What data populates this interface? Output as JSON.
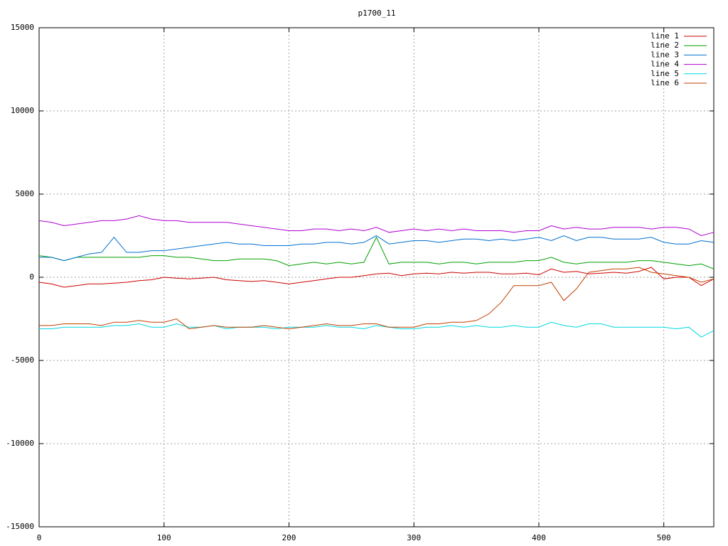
{
  "chart_data": {
    "type": "line",
    "title": "p1700_11",
    "x": [
      0,
      10,
      20,
      30,
      40,
      50,
      60,
      70,
      80,
      90,
      100,
      110,
      120,
      130,
      140,
      150,
      160,
      170,
      180,
      190,
      200,
      210,
      220,
      230,
      240,
      250,
      260,
      270,
      280,
      290,
      300,
      310,
      320,
      330,
      340,
      350,
      360,
      370,
      380,
      390,
      400,
      410,
      420,
      430,
      440,
      450,
      460,
      470,
      480,
      490,
      500,
      510,
      520,
      530,
      540
    ],
    "series": [
      {
        "name": "line 1",
        "color": "#cc0000",
        "values": [
          -300,
          -400,
          -600,
          -500,
          -400,
          -400,
          -350,
          -300,
          -200,
          -150,
          0,
          -50,
          -100,
          -50,
          0,
          -150,
          -200,
          -250,
          -200,
          -300,
          -400,
          -300,
          -200,
          -100,
          0,
          0,
          100,
          200,
          250,
          100,
          200,
          250,
          200,
          300,
          250,
          300,
          300,
          200,
          200,
          250,
          150,
          500,
          300,
          350,
          200,
          250,
          300,
          250,
          350,
          600,
          -100,
          0,
          0,
          -500,
          -100
        ]
      },
      {
        "name": "line 2",
        "color": "#00a000",
        "values": [
          1300,
          1200,
          1000,
          1200,
          1200,
          1200,
          1200,
          1200,
          1200,
          1300,
          1300,
          1200,
          1200,
          1100,
          1000,
          1000,
          1100,
          1100,
          1100,
          1000,
          700,
          800,
          900,
          800,
          900,
          800,
          900,
          2400,
          800,
          900,
          900,
          900,
          800,
          900,
          900,
          800,
          900,
          900,
          900,
          1000,
          1000,
          1200,
          900,
          800,
          900,
          900,
          900,
          900,
          1000,
          1000,
          900,
          800,
          700,
          800,
          500
        ]
      },
      {
        "name": "line 3",
        "color": "#0070d0",
        "values": [
          1200,
          1200,
          1000,
          1200,
          1400,
          1500,
          2400,
          1500,
          1500,
          1600,
          1600,
          1700,
          1800,
          1900,
          2000,
          2100,
          2000,
          2000,
          1900,
          1900,
          1900,
          2000,
          2000,
          2100,
          2100,
          2000,
          2100,
          2500,
          2000,
          2100,
          2200,
          2200,
          2100,
          2200,
          2300,
          2300,
          2200,
          2300,
          2200,
          2300,
          2400,
          2200,
          2500,
          2200,
          2400,
          2400,
          2300,
          2300,
          2300,
          2400,
          2100,
          2000,
          2000,
          2200,
          2100
        ]
      },
      {
        "name": "line 4",
        "color": "#b000d0",
        "values": [
          3400,
          3300,
          3100,
          3200,
          3300,
          3400,
          3400,
          3500,
          3700,
          3500,
          3400,
          3400,
          3300,
          3300,
          3300,
          3300,
          3200,
          3100,
          3000,
          2900,
          2800,
          2800,
          2900,
          2900,
          2800,
          2900,
          2800,
          3000,
          2700,
          2800,
          2900,
          2800,
          2900,
          2800,
          2900,
          2800,
          2800,
          2800,
          2700,
          2800,
          2800,
          3100,
          2900,
          3000,
          2900,
          2900,
          3000,
          3000,
          3000,
          2900,
          3000,
          3000,
          2900,
          2500,
          2700
        ]
      },
      {
        "name": "line 5",
        "color": "#00d8e0",
        "values": [
          -3100,
          -3100,
          -3000,
          -3000,
          -3000,
          -3000,
          -2900,
          -2900,
          -2800,
          -3000,
          -3000,
          -2800,
          -3000,
          -3000,
          -2900,
          -3100,
          -3000,
          -3000,
          -3000,
          -3100,
          -3000,
          -3000,
          -3000,
          -2900,
          -3000,
          -3000,
          -3100,
          -2900,
          -3000,
          -3100,
          -3100,
          -3000,
          -3000,
          -2900,
          -3000,
          -2900,
          -3000,
          -3000,
          -2900,
          -3000,
          -3000,
          -2700,
          -2900,
          -3000,
          -2800,
          -2800,
          -3000,
          -3000,
          -3000,
          -3000,
          -3000,
          -3100,
          -3000,
          -3600,
          -3200
        ]
      },
      {
        "name": "line 6",
        "color": "#c04000",
        "values": [
          -2900,
          -2900,
          -2800,
          -2800,
          -2800,
          -2900,
          -2700,
          -2700,
          -2600,
          -2700,
          -2700,
          -2500,
          -3100,
          -3000,
          -2900,
          -3000,
          -3000,
          -3000,
          -2900,
          -3000,
          -3100,
          -3000,
          -2900,
          -2800,
          -2900,
          -2900,
          -2800,
          -2800,
          -3000,
          -3000,
          -3000,
          -2800,
          -2800,
          -2700,
          -2700,
          -2600,
          -2200,
          -1500,
          -500,
          -500,
          -500,
          -300,
          -1400,
          -700,
          300,
          400,
          500,
          500,
          600,
          300,
          200,
          100,
          0,
          -300,
          -100
        ]
      }
    ],
    "xlim": [
      0,
      540
    ],
    "xticks": [
      0,
      100,
      200,
      300,
      400,
      500
    ],
    "ylim": [
      -15000,
      15000
    ],
    "yticks": [
      -15000,
      -10000,
      -5000,
      0,
      5000,
      10000,
      15000
    ],
    "grid": true,
    "legend": "top-right"
  }
}
